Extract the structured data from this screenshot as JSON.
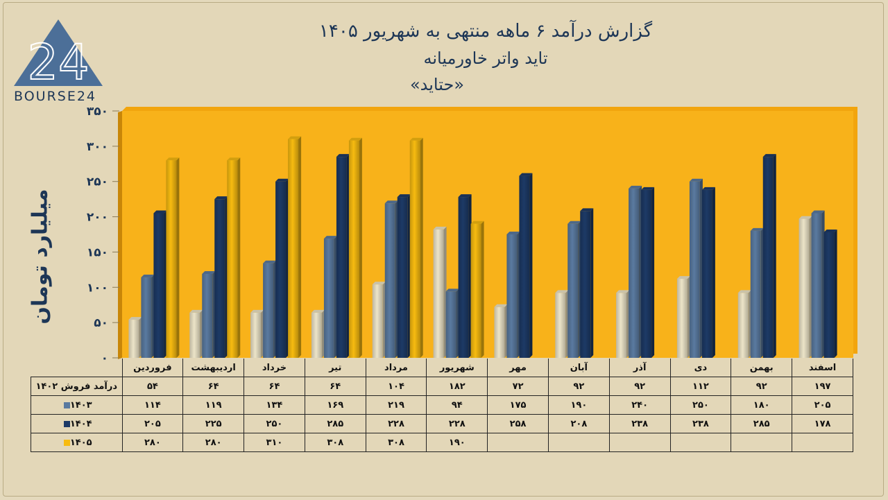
{
  "brand": {
    "logo_text": "BOURSE24",
    "logo_digits": "24"
  },
  "title": {
    "line1": "گزارش  درآمد ۶ ماهه منتهی به شهریور ۱۴۰۵",
    "line2": "تاید واتر خاورمیانه",
    "line3": "«حتاید»"
  },
  "colors": {
    "s1402": "#ece4c8",
    "s1403": "#5a7aa0",
    "s1404": "#1d3a66",
    "s1405": "#f7bb10",
    "plot_bg": "#f8b21a"
  },
  "chart_data": {
    "type": "bar",
    "ylabel": "میلیارد تومان",
    "ylim": [
      0,
      350
    ],
    "yticks": [
      "۰",
      "۵۰",
      "۱۰۰",
      "۱۵۰",
      "۲۰۰",
      "۲۵۰",
      "۳۰۰",
      "۳۵۰"
    ],
    "ytick_values": [
      0,
      50,
      100,
      150,
      200,
      250,
      300,
      350
    ],
    "grid": false,
    "categories": [
      "فروردین",
      "اردیبهشت",
      "خرداد",
      "تیر",
      "مرداد",
      "شهریور",
      "مهر",
      "آبان",
      "آذر",
      "دی",
      "بهمن",
      "اسفند"
    ],
    "series": [
      {
        "name": "درآمد فروش ۱۴۰۲",
        "values": [
          54,
          64,
          64,
          64,
          104,
          182,
          72,
          92,
          92,
          112,
          92,
          197
        ],
        "labels": [
          "۵۴",
          "۶۴",
          "۶۴",
          "۶۴",
          "۱۰۴",
          "۱۸۲",
          "۷۲",
          "۹۲",
          "۹۲",
          "۱۱۲",
          "۹۲",
          "۱۹۷"
        ]
      },
      {
        "name": "۱۴۰۳",
        "values": [
          114,
          119,
          134,
          169,
          219,
          94,
          175,
          190,
          240,
          250,
          180,
          205
        ],
        "labels": [
          "۱۱۴",
          "۱۱۹",
          "۱۳۴",
          "۱۶۹",
          "۲۱۹",
          "۹۴",
          "۱۷۵",
          "۱۹۰",
          "۲۴۰",
          "۲۵۰",
          "۱۸۰",
          "۲۰۵"
        ]
      },
      {
        "name": "۱۴۰۴",
        "values": [
          205,
          225,
          250,
          285,
          228,
          228,
          258,
          208,
          238,
          238,
          285,
          178
        ],
        "labels": [
          "۲۰۵",
          "۲۲۵",
          "۲۵۰",
          "۲۸۵",
          "۲۲۸",
          "۲۲۸",
          "۲۵۸",
          "۲۰۸",
          "۲۳۸",
          "۲۳۸",
          "۲۸۵",
          "۱۷۸"
        ]
      },
      {
        "name": "۱۴۰۵",
        "values": [
          280,
          280,
          310,
          308,
          308,
          190,
          null,
          null,
          null,
          null,
          null,
          null
        ],
        "labels": [
          "۲۸۰",
          "۲۸۰",
          "۳۱۰",
          "۳۰۸",
          "۳۰۸",
          "۱۹۰",
          "",
          "",
          "",
          "",
          "",
          ""
        ]
      }
    ]
  }
}
